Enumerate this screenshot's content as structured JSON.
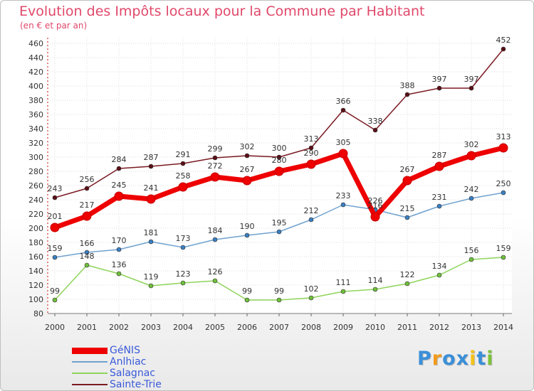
{
  "title": "Evolution des Impôts locaux pour la Commune par Habitant",
  "subtitle": "(en € et par an)",
  "logo": {
    "letters": [
      {
        "ch": "P",
        "color": "#3a8fd8"
      },
      {
        "ch": "r",
        "color": "#f29a1a"
      },
      {
        "ch": "o",
        "color": "#3a8fd8"
      },
      {
        "ch": "x",
        "color": "#3a8fd8"
      },
      {
        "ch": "i",
        "color": "#f2c21a"
      },
      {
        "ch": "t",
        "color": "#3a8fd8"
      },
      {
        "ch": "i",
        "color": "#7cc23a"
      }
    ]
  },
  "chart_data": {
    "type": "line",
    "title": "Evolution des Impôts locaux pour la Commune par Habitant",
    "subtitle": "(en € et par an)",
    "xlabel": "",
    "ylabel": "",
    "x": [
      "2000",
      "2001",
      "2002",
      "2003",
      "2004",
      "2005",
      "2006",
      "2007",
      "2008",
      "2009",
      "2010",
      "2011",
      "2012",
      "2013",
      "2014"
    ],
    "ylim": [
      80,
      460
    ],
    "yticks": [
      80,
      100,
      120,
      140,
      160,
      180,
      200,
      220,
      240,
      260,
      280,
      300,
      320,
      340,
      360,
      380,
      400,
      420,
      440,
      460
    ],
    "grid": true,
    "legend_position": "bottom-left",
    "series": [
      {
        "name": "Sainte-Trie",
        "color": "#7a1a22",
        "marker": "#5a0e16",
        "role": "thin",
        "values": [
          243,
          256,
          284,
          287,
          291,
          299,
          302,
          300,
          313,
          366,
          338,
          388,
          397,
          397,
          452
        ]
      },
      {
        "name": "Salagnac",
        "color": "#8ed45a",
        "marker": "#6fbf3a",
        "role": "thin",
        "values": [
          99,
          148,
          136,
          119,
          123,
          126,
          99,
          99,
          102,
          111,
          114,
          122,
          134,
          156,
          159
        ]
      },
      {
        "name": "Anlhiac",
        "color": "#6fa2cf",
        "marker": "#3a7fc1",
        "role": "thin",
        "values": [
          159,
          166,
          170,
          181,
          173,
          184,
          190,
          195,
          212,
          233,
          226,
          215,
          231,
          242,
          250
        ]
      },
      {
        "name": "GéNIS",
        "color": "#ee0000",
        "marker": "#ee0000",
        "role": "thick",
        "values": [
          201,
          217,
          245,
          241,
          258,
          272,
          267,
          280,
          290,
          305,
          216,
          267,
          287,
          302,
          313
        ]
      }
    ]
  }
}
